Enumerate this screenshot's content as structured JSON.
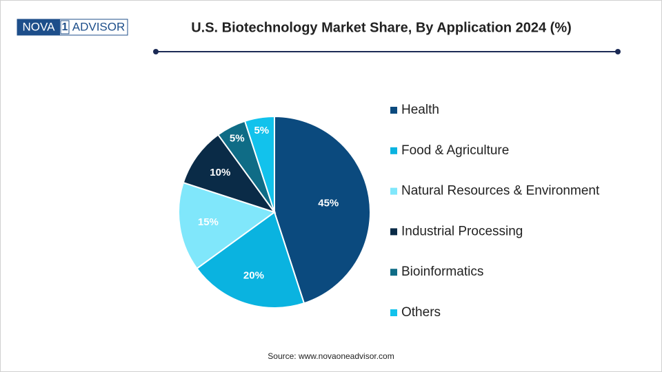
{
  "logo": {
    "left": "NOVA",
    "mark": "1",
    "right": "ADVISOR"
  },
  "chart_data": {
    "type": "pie",
    "title": "U.S. Biotechnology Market Share, By Application 2024 (%)",
    "categories": [
      "Health",
      "Food & Agriculture",
      "Natural Resources & Environment",
      "Industrial Processing",
      "Bioinformatics",
      "Others"
    ],
    "values": [
      45,
      20,
      15,
      10,
      5,
      5
    ],
    "value_labels": [
      "45%",
      "20%",
      "15%",
      "10%",
      "5%",
      "5%"
    ],
    "colors": [
      "#0b4a7e",
      "#0ab3e0",
      "#80e7fb",
      "#0a2b47",
      "#0f6c86",
      "#12c2ec"
    ],
    "legend": "right",
    "source": "Source: www.novaoneadvisor.com"
  }
}
